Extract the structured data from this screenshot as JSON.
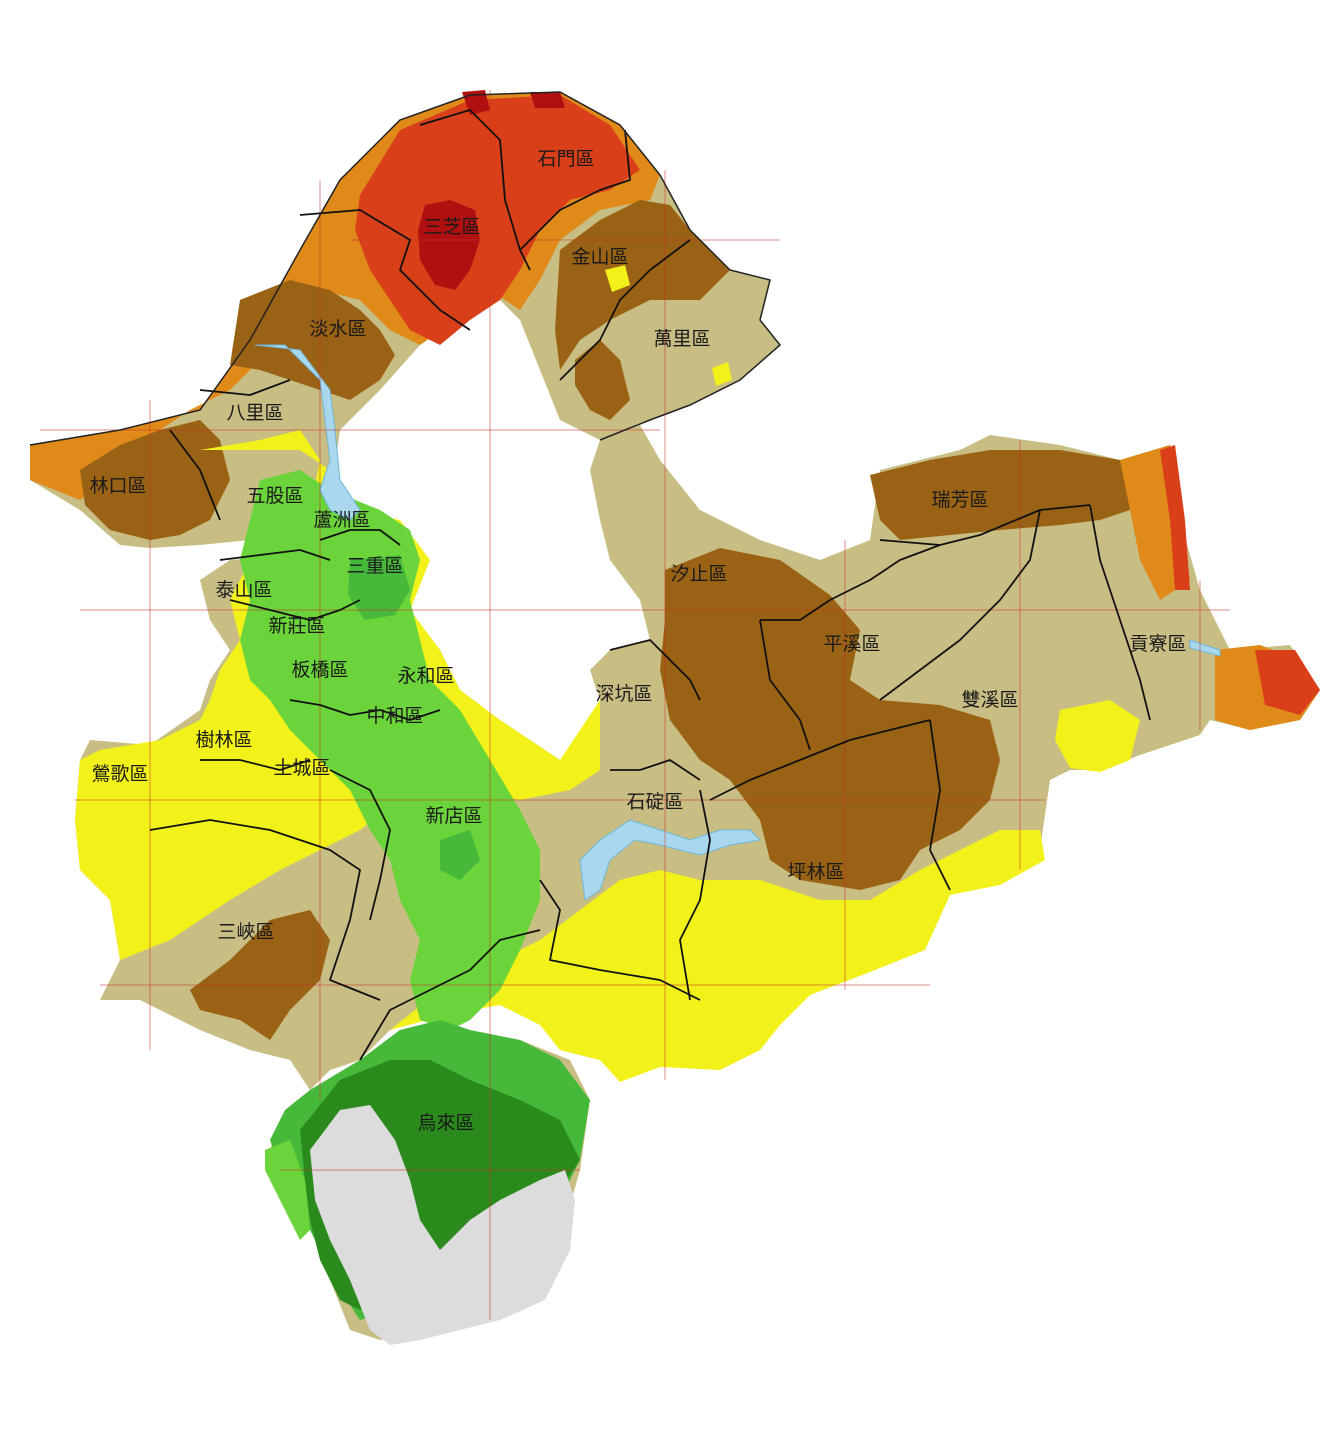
{
  "colors": {
    "deep_red": "#b01010",
    "red": "#d9401a",
    "orange_red": "#e4601c",
    "orange": "#e08a1a",
    "brown": "#9a6214",
    "tan": "#c8be84",
    "yellow": "#f2f21a",
    "light_green": "#6ad43a",
    "green": "#46b83a",
    "dark_green": "#2a8a1c",
    "light_gray": "#dcdcdc",
    "water": "#a9d8ee",
    "boundary": "#111111",
    "grid": "#c8312a"
  },
  "districts": [
    {
      "id": "shimen",
      "name": "石門區"
    },
    {
      "id": "sanzhi",
      "name": "三芝區"
    },
    {
      "id": "jinshan",
      "name": "金山區"
    },
    {
      "id": "tamsui",
      "name": "淡水區"
    },
    {
      "id": "wanli",
      "name": "萬里區"
    },
    {
      "id": "bali",
      "name": "八里區"
    },
    {
      "id": "linkou",
      "name": "林口區"
    },
    {
      "id": "wugu",
      "name": "五股區"
    },
    {
      "id": "luzhou",
      "name": "蘆洲區"
    },
    {
      "id": "sanchong",
      "name": "三重區"
    },
    {
      "id": "taishan",
      "name": "泰山區"
    },
    {
      "id": "xinzhuang",
      "name": "新莊區"
    },
    {
      "id": "banqiao",
      "name": "板橋區"
    },
    {
      "id": "yonghe",
      "name": "永和區"
    },
    {
      "id": "zhonghe",
      "name": "中和區"
    },
    {
      "id": "shulin",
      "name": "樹林區"
    },
    {
      "id": "yingge",
      "name": "鶯歌區"
    },
    {
      "id": "tucheng",
      "name": "土城區"
    },
    {
      "id": "xindian",
      "name": "新店區"
    },
    {
      "id": "sanxia",
      "name": "三峽區"
    },
    {
      "id": "wulai",
      "name": "烏來區"
    },
    {
      "id": "ruifang",
      "name": "瑞芳區"
    },
    {
      "id": "xizhi",
      "name": "汐止區"
    },
    {
      "id": "pingxi",
      "name": "平溪區"
    },
    {
      "id": "gongliao",
      "name": "貢寮區"
    },
    {
      "id": "shenkeng",
      "name": "深坑區"
    },
    {
      "id": "shuangxi",
      "name": "雙溪區"
    },
    {
      "id": "shiding",
      "name": "石碇區"
    },
    {
      "id": "pinglin",
      "name": "坪林區"
    }
  ]
}
